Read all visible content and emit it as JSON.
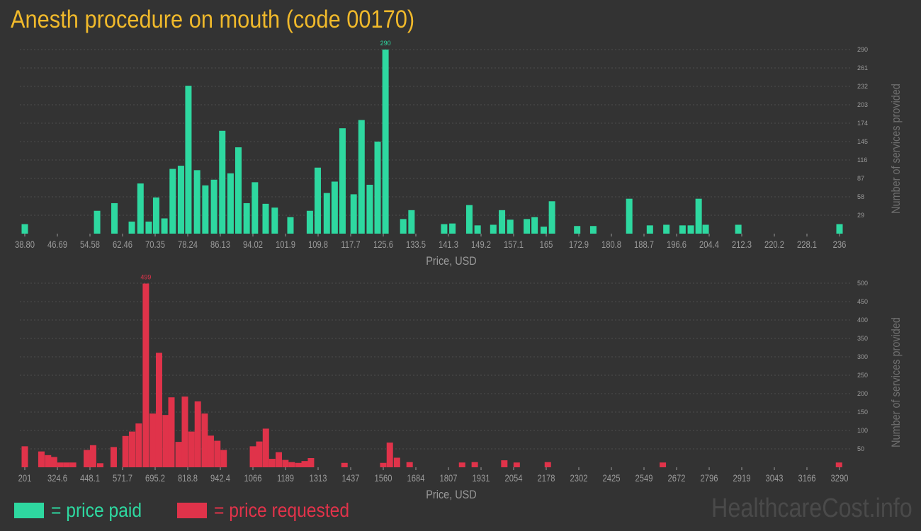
{
  "page": {
    "title": "Anesth procedure on mouth (code 00170)",
    "watermark": "HealthcareCost.info"
  },
  "legend": {
    "paid_label": "= price paid",
    "requested_label": "= price requested",
    "paid_color": "#2ed8a0",
    "requested_color": "#e0334a"
  },
  "colors": {
    "background": "#333333",
    "grid": "#4c4c4c",
    "axis_text": "#9a9a9a",
    "title": "#f0b92b"
  },
  "chart_data": [
    {
      "type": "bar",
      "series_name": "price paid",
      "xlabel": "Price, USD",
      "ylabel": "Number of services provided",
      "x_tick_labels": [
        "38.80",
        "46.69",
        "54.58",
        "62.46",
        "70.35",
        "78.24",
        "86.13",
        "94.02",
        "101.9",
        "109.8",
        "117.7",
        "125.6",
        "133.5",
        "141.3",
        "149.2",
        "157.1",
        "165",
        "172.9",
        "180.8",
        "188.7",
        "196.6",
        "204.4",
        "212.3",
        "220.2",
        "228.1",
        "236"
      ],
      "x_range": [
        38.8,
        236
      ],
      "y_ticks": [
        29,
        58,
        87,
        116,
        145,
        174,
        203,
        232,
        261,
        290
      ],
      "ylim": [
        0,
        290
      ],
      "max_label": "290",
      "color": "#2ed8a0",
      "x": [
        38.8,
        56.3,
        60.5,
        64.7,
        66.8,
        68.8,
        70.6,
        72.6,
        74.6,
        76.6,
        78.4,
        80.5,
        82.5,
        84.6,
        86.6,
        88.6,
        90.5,
        92.5,
        94.5,
        97.1,
        99.3,
        103.1,
        107.8,
        109.7,
        111.9,
        113.8,
        115.7,
        118.4,
        120.3,
        122.3,
        124.2,
        126.1,
        130.4,
        132.4,
        140.3,
        142.3,
        146.4,
        148.4,
        152.2,
        154.3,
        156.3,
        160.3,
        162.2,
        164.4,
        166.4,
        172.5,
        176.4,
        185.1,
        190.1,
        194.1,
        198.0,
        200.0,
        201.9,
        203.6,
        211.5,
        236.0
      ],
      "values": [
        15,
        36,
        48,
        19,
        79,
        19,
        57,
        24,
        102,
        107,
        233,
        100,
        76,
        85,
        162,
        95,
        136,
        48,
        81,
        47,
        41,
        26,
        36,
        104,
        64,
        82,
        166,
        62,
        179,
        77,
        145,
        290,
        23,
        37,
        15,
        16,
        45,
        13,
        14,
        37,
        22,
        23,
        26,
        11,
        51,
        12,
        12,
        55,
        13,
        14,
        13,
        13,
        55,
        14,
        14,
        15
      ]
    },
    {
      "type": "bar",
      "series_name": "price requested",
      "xlabel": "Price, USD",
      "ylabel": "Number of services provided",
      "x_tick_labels": [
        "201",
        "324.6",
        "448.1",
        "571.7",
        "695.2",
        "818.8",
        "942.4",
        "1066",
        "1189",
        "1313",
        "1437",
        "1560",
        "1684",
        "1807",
        "1931",
        "2054",
        "2178",
        "2302",
        "2425",
        "2549",
        "2672",
        "2796",
        "2919",
        "3043",
        "3166",
        "3290"
      ],
      "x_range": [
        201,
        3290
      ],
      "y_ticks": [
        50,
        100,
        150,
        200,
        250,
        300,
        350,
        400,
        450,
        500
      ],
      "ylim": [
        0,
        500
      ],
      "max_label": "499",
      "color": "#e0334a",
      "x": [
        201,
        264,
        289,
        312,
        336,
        360,
        384,
        436,
        460,
        487,
        538,
        583,
        608,
        633,
        660,
        686,
        710,
        735,
        757,
        784,
        808,
        833,
        857,
        883,
        906,
        931,
        955,
        1066,
        1090,
        1115,
        1139,
        1164,
        1189,
        1213,
        1238,
        1262,
        1286,
        1413,
        1560,
        1585,
        1612,
        1660,
        1859,
        1907,
        2019,
        2066,
        2184,
        2620,
        3288
      ],
      "values": [
        57,
        43,
        33,
        28,
        13,
        13,
        13,
        47,
        60,
        11,
        55,
        85,
        97,
        119,
        499,
        146,
        311,
        142,
        190,
        69,
        192,
        97,
        179,
        146,
        86,
        72,
        47,
        57,
        70,
        105,
        23,
        41,
        20,
        14,
        12,
        17,
        25,
        12,
        12,
        67,
        26,
        14,
        13,
        14,
        19,
        13,
        14,
        13,
        13
      ]
    }
  ]
}
